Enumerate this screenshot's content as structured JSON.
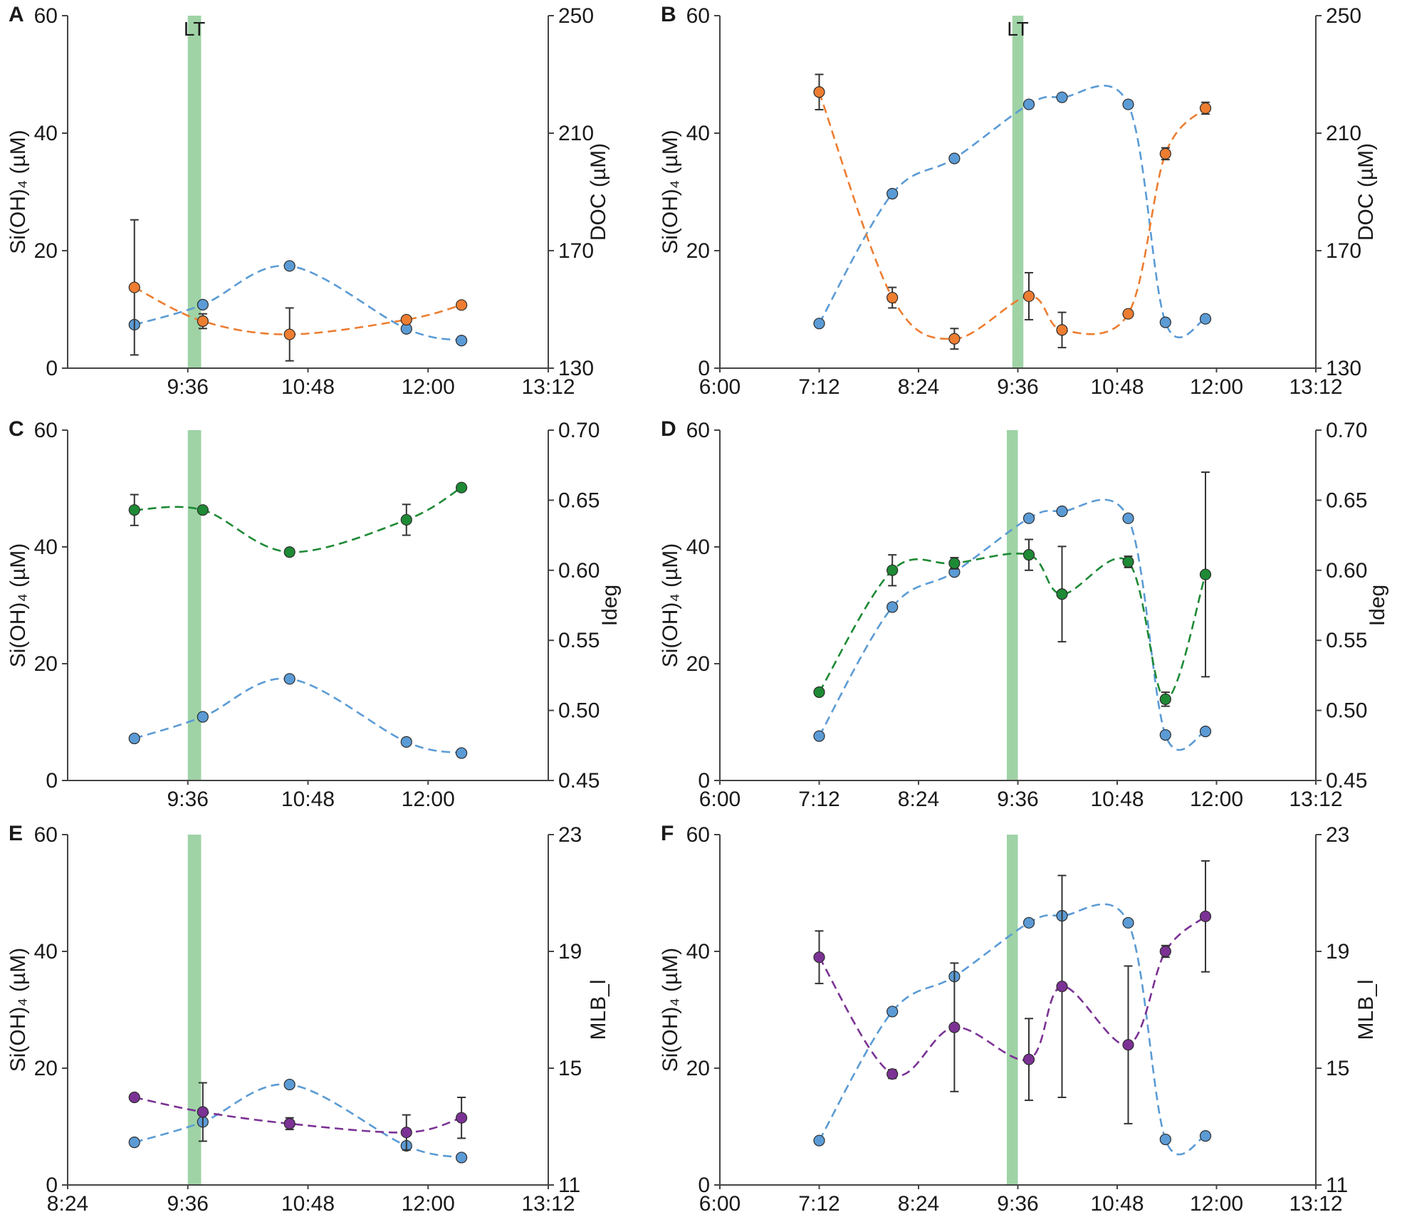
{
  "figure": {
    "colors": {
      "silicate": "#5b9bd5",
      "doc": "#ed7d31",
      "ideg": "#1e8a35",
      "mlb": "#7b3294",
      "lt_band": "#9fd3a6",
      "errorbar": "#333333"
    }
  },
  "chart_data": [
    {
      "panel": "A",
      "type": "line",
      "xlabel": "",
      "ylabel": "Si(OH)₄ (µM)",
      "y2label": "DOC (µM)",
      "xlim": [
        504,
        792
      ],
      "xticks": [
        "9:36",
        "10:48",
        "12:00",
        "13:12"
      ],
      "xtick_values": [
        576,
        648,
        720,
        792
      ],
      "ylim": [
        0,
        60
      ],
      "yticks": [
        "0",
        "20",
        "40",
        "60"
      ],
      "y2lim": [
        130,
        250
      ],
      "y2ticks": [
        "130",
        "170",
        "210",
        "250"
      ],
      "lt_marker": {
        "label": "LT",
        "x": 580,
        "width_minutes": 8
      },
      "series": [
        {
          "name": "Si(OH)₄",
          "axis": "y",
          "color_key": "silicate",
          "points": [
            [
              544,
              7.4
            ],
            [
              585,
              10.8
            ],
            [
              637,
              17.4
            ],
            [
              707,
              6.7
            ],
            [
              740,
              4.7
            ]
          ]
        },
        {
          "name": "DOC",
          "axis": "y2",
          "color_key": "doc",
          "points": [
            [
              544,
              157.5,
              23
            ],
            [
              585,
              146,
              2.5
            ],
            [
              637,
              141.5,
              9
            ],
            [
              707,
              146.5,
              1
            ],
            [
              740,
              151.5,
              1
            ]
          ]
        }
      ]
    },
    {
      "panel": "B",
      "type": "line",
      "xlabel": "",
      "ylabel": "Si(OH)₄ (µM)",
      "y2label": "DOC (µM)",
      "xlim": [
        360,
        792
      ],
      "xticks": [
        "6:00",
        "7:12",
        "8:24",
        "9:36",
        "10:48",
        "12:00",
        "13:12"
      ],
      "xtick_values": [
        360,
        432,
        504,
        576,
        648,
        720,
        792
      ],
      "ylim": [
        0,
        60
      ],
      "yticks": [
        "0",
        "20",
        "40",
        "60"
      ],
      "y2lim": [
        130,
        250
      ],
      "y2ticks": [
        "130",
        "170",
        "210",
        "250"
      ],
      "lt_marker": {
        "label": "LT",
        "x": 576,
        "width_minutes": 8
      },
      "series": [
        {
          "name": "Si(OH)₄",
          "axis": "y",
          "color_key": "silicate",
          "points": [
            [
              432,
              7.6
            ],
            [
              485,
              29.7
            ],
            [
              530,
              35.7
            ],
            [
              584,
              44.9
            ],
            [
              608,
              46.1
            ],
            [
              656,
              44.9
            ],
            [
              683,
              7.8
            ],
            [
              712,
              8.4
            ]
          ]
        },
        {
          "name": "DOC",
          "axis": "y2",
          "color_key": "doc",
          "points": [
            [
              432,
              224,
              6
            ],
            [
              485,
              154,
              3.5
            ],
            [
              530,
              140,
              3.5
            ],
            [
              584,
              154.5,
              8
            ],
            [
              608,
              143,
              6
            ],
            [
              656,
              148.5,
              1
            ],
            [
              683,
              203,
              2
            ],
            [
              712,
              218.5,
              2
            ]
          ]
        }
      ]
    },
    {
      "panel": "C",
      "type": "line",
      "xlabel": "",
      "ylabel": "Si(OH)₄ (µM)",
      "y2label": "Ideg",
      "xlim": [
        504,
        792
      ],
      "xticks": [
        "9:36",
        "10:48",
        "12:00"
      ],
      "xtick_values": [
        576,
        648,
        720
      ],
      "ylim": [
        0,
        60
      ],
      "yticks": [
        "0",
        "20",
        "40",
        "60"
      ],
      "y2lim": [
        0.45,
        0.7
      ],
      "y2ticks": [
        "0.45",
        "0.50",
        "0.55",
        "0.60",
        "0.65",
        "0.70"
      ],
      "lt_marker": {
        "label": "",
        "x": 580,
        "width_minutes": 8
      },
      "series": [
        {
          "name": "Si(OH)₄",
          "axis": "y",
          "color_key": "silicate",
          "points": [
            [
              544,
              7.2
            ],
            [
              585,
              10.9
            ],
            [
              637,
              17.4
            ],
            [
              707,
              6.6
            ],
            [
              740,
              4.7
            ]
          ]
        },
        {
          "name": "Ideg",
          "axis": "y2",
          "color_key": "ideg",
          "points": [
            [
              544,
              0.643,
              0.011
            ],
            [
              585,
              0.643,
              0
            ],
            [
              637,
              0.613,
              0
            ],
            [
              707,
              0.636,
              0.011
            ],
            [
              740,
              0.659,
              0
            ]
          ]
        }
      ]
    },
    {
      "panel": "D",
      "type": "line",
      "xlabel": "",
      "ylabel": "Si(OH)₄ (µM)",
      "y2label": "Ideg",
      "xlim": [
        360,
        792
      ],
      "xticks": [
        "6:00",
        "7:12",
        "8:24",
        "9:36",
        "10:48",
        "12:00",
        "13:12"
      ],
      "xtick_values": [
        360,
        432,
        504,
        576,
        648,
        720,
        792
      ],
      "ylim": [
        0,
        60
      ],
      "yticks": [
        "0",
        "20",
        "40",
        "60"
      ],
      "y2lim": [
        0.45,
        0.7
      ],
      "y2ticks": [
        "0.45",
        "0.50",
        "0.55",
        "0.60",
        "0.65",
        "0.70"
      ],
      "lt_marker": {
        "label": "",
        "x": 572,
        "width_minutes": 8
      },
      "series": [
        {
          "name": "Si(OH)₄",
          "axis": "y",
          "color_key": "silicate",
          "points": [
            [
              432,
              7.6
            ],
            [
              485,
              29.7
            ],
            [
              530,
              35.7
            ],
            [
              584,
              44.9
            ],
            [
              608,
              46.1
            ],
            [
              656,
              44.9
            ],
            [
              683,
              7.8
            ],
            [
              712,
              8.4
            ]
          ]
        },
        {
          "name": "Ideg",
          "axis": "y2",
          "color_key": "ideg",
          "points": [
            [
              432,
              0.513,
              0
            ],
            [
              485,
              0.6,
              0.011
            ],
            [
              530,
              0.605,
              0.004
            ],
            [
              584,
              0.611,
              0.011
            ],
            [
              608,
              0.583,
              0.034
            ],
            [
              656,
              0.606,
              0.004
            ],
            [
              683,
              0.508,
              0.005
            ],
            [
              712,
              0.597,
              0.073
            ]
          ]
        }
      ]
    },
    {
      "panel": "E",
      "type": "line",
      "xlabel": "",
      "ylabel": "Si(OH)₄ (µM)",
      "y2label": "MLB_l",
      "xlim": [
        504,
        792
      ],
      "xticks": [
        "8:24",
        "9:36",
        "10:48",
        "12:00",
        "13:12"
      ],
      "xtick_values": [
        504,
        576,
        648,
        720,
        792
      ],
      "ylim": [
        0,
        60
      ],
      "yticks": [
        "0",
        "20",
        "40",
        "60"
      ],
      "y2lim": [
        11,
        23
      ],
      "y2ticks": [
        "11",
        "15",
        "19",
        "23"
      ],
      "lt_marker": {
        "label": "",
        "x": 580,
        "width_minutes": 8
      },
      "series": [
        {
          "name": "Si(OH)₄",
          "axis": "y",
          "color_key": "silicate",
          "points": [
            [
              544,
              7.3
            ],
            [
              585,
              10.8
            ],
            [
              637,
              17.2
            ],
            [
              707,
              6.7
            ],
            [
              740,
              4.7
            ]
          ]
        },
        {
          "name": "MLB_l",
          "axis": "y2",
          "color_key": "mlb",
          "points": [
            [
              544,
              14.0,
              0
            ],
            [
              585,
              13.5,
              1.0
            ],
            [
              637,
              13.1,
              0.2
            ],
            [
              707,
              12.8,
              0.6
            ],
            [
              740,
              13.3,
              0.7
            ]
          ]
        }
      ]
    },
    {
      "panel": "F",
      "type": "line",
      "xlabel": "",
      "ylabel": "Si(OH)₄ (µM)",
      "y2label": "MLB_l",
      "xlim": [
        360,
        792
      ],
      "xticks": [
        "6:00",
        "7:12",
        "8:24",
        "9:36",
        "10:48",
        "12:00",
        "13:12"
      ],
      "xtick_values": [
        360,
        432,
        504,
        576,
        648,
        720,
        792
      ],
      "ylim": [
        0,
        60
      ],
      "yticks": [
        "0",
        "20",
        "40",
        "60"
      ],
      "y2lim": [
        11,
        23
      ],
      "y2ticks": [
        "11",
        "15",
        "19",
        "23"
      ],
      "lt_marker": {
        "label": "",
        "x": 572,
        "width_minutes": 8
      },
      "series": [
        {
          "name": "Si(OH)₄",
          "axis": "y",
          "color_key": "silicate",
          "points": [
            [
              432,
              7.6
            ],
            [
              485,
              29.7
            ],
            [
              530,
              35.7
            ],
            [
              584,
              44.9
            ],
            [
              608,
              46.1
            ],
            [
              656,
              44.9
            ],
            [
              683,
              7.8
            ],
            [
              712,
              8.4
            ]
          ]
        },
        {
          "name": "MLB_l",
          "axis": "y2",
          "color_key": "mlb",
          "points": [
            [
              432,
              18.8,
              0.9
            ],
            [
              485,
              14.8,
              0.15
            ],
            [
              530,
              16.4,
              2.2
            ],
            [
              584,
              15.3,
              1.4
            ],
            [
              608,
              17.8,
              3.8
            ],
            [
              656,
              15.8,
              2.7
            ],
            [
              683,
              19.0,
              0.2
            ],
            [
              712,
              20.2,
              1.9
            ]
          ]
        }
      ]
    }
  ]
}
